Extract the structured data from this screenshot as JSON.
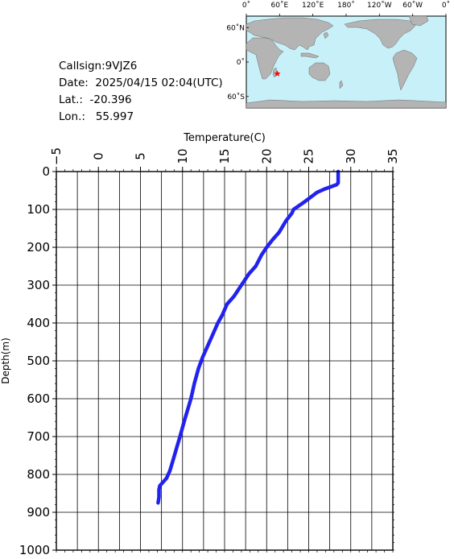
{
  "info": {
    "callsign": "Callsign:9VJZ6",
    "date": "Date:  2025/04/15 02:04(UTC)",
    "lat": "Lat.:  -20.396",
    "lon": "Lon.:   55.997"
  },
  "map": {
    "top_labels": [
      "0˚",
      "60˚E",
      "120˚E",
      "180˚",
      "120˚W",
      "60˚W",
      "0˚"
    ],
    "left_labels": [
      "60˚N",
      "0˚",
      "60˚S"
    ],
    "ocean_color": "#c8f0f8",
    "land_color": "#b4b4b4",
    "marker_color": "#ff0000",
    "marker": {
      "lon": 55.997,
      "lat": -20.396
    }
  },
  "chart_data": {
    "type": "line",
    "title": "",
    "xlabel": "Temperature(C)",
    "ylabel": "Depth(m)",
    "xlim": [
      -5,
      35
    ],
    "ylim": [
      1000,
      0
    ],
    "xticks": [
      -5,
      0,
      5,
      10,
      15,
      20,
      25,
      30,
      35
    ],
    "yticks": [
      0,
      100,
      200,
      300,
      400,
      500,
      600,
      700,
      800,
      900,
      1000
    ],
    "grid": true,
    "line_color": "#2222ee",
    "series": [
      {
        "x": [
          28.5,
          28.5,
          28.3,
          27.0,
          26.0,
          24.5,
          23.2,
          23.0,
          22.3,
          21.5,
          20.7,
          20.0,
          19.4,
          18.7,
          17.9,
          17.0,
          16.1,
          15.3,
          14.7,
          14.2,
          13.6,
          13.0,
          12.4,
          11.9,
          11.4,
          11.0,
          10.6,
          10.2,
          9.7,
          9.3,
          8.9,
          8.5,
          8.1,
          7.7,
          7.3,
          7.2,
          7.2,
          7.1
        ],
        "y": [
          0,
          30,
          35,
          45,
          55,
          80,
          100,
          110,
          130,
          160,
          180,
          200,
          220,
          250,
          270,
          300,
          330,
          350,
          380,
          400,
          430,
          460,
          490,
          520,
          560,
          600,
          630,
          660,
          700,
          730,
          760,
          790,
          810,
          820,
          830,
          840,
          860,
          875
        ]
      }
    ]
  }
}
